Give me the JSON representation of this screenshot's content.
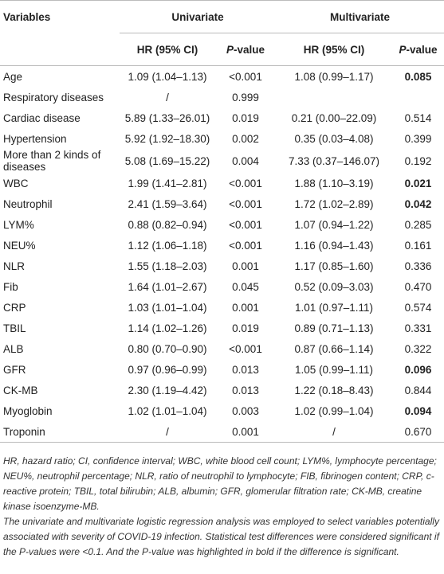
{
  "header": {
    "variables": "Variables",
    "univariate": "Univariate",
    "multivariate": "Multivariate",
    "hr": "HR (95% CI)",
    "p": "P-value"
  },
  "table": {
    "rows": [
      {
        "variable": "Age",
        "uni_hr": "1.09 (1.04–1.13)",
        "uni_p": "<0.001",
        "multi_hr": "1.08 (0.99–1.17)",
        "multi_p": "0.085",
        "significant": true
      },
      {
        "variable": "Respiratory diseases",
        "uni_hr": "/",
        "uni_p": "0.999",
        "multi_hr": "",
        "multi_p": "",
        "significant": false
      },
      {
        "variable": "Cardiac disease",
        "uni_hr": "5.89 (1.33–26.01)",
        "uni_p": "0.019",
        "multi_hr": "0.21 (0.00–22.09)",
        "multi_p": "0.514",
        "significant": false
      },
      {
        "variable": "Hypertension",
        "uni_hr": "5.92 (1.92–18.30)",
        "uni_p": "0.002",
        "multi_hr": "0.35 (0.03–4.08)",
        "multi_p": "0.399",
        "significant": false
      },
      {
        "variable": "More than 2 kinds of diseases",
        "uni_hr": "5.08 (1.69–15.22)",
        "uni_p": "0.004",
        "multi_hr": "7.33 (0.37–146.07)",
        "multi_p": "0.192",
        "significant": false
      },
      {
        "variable": "WBC",
        "uni_hr": "1.99 (1.41–2.81)",
        "uni_p": "<0.001",
        "multi_hr": "1.88 (1.10–3.19)",
        "multi_p": "0.021",
        "significant": true
      },
      {
        "variable": "Neutrophil",
        "uni_hr": "2.41 (1.59–3.64)",
        "uni_p": "<0.001",
        "multi_hr": "1.72 (1.02–2.89)",
        "multi_p": "0.042",
        "significant": true
      },
      {
        "variable": "LYM%",
        "uni_hr": "0.88 (0.82–0.94)",
        "uni_p": "<0.001",
        "multi_hr": "1.07 (0.94–1.22)",
        "multi_p": "0.285",
        "significant": false
      },
      {
        "variable": "NEU%",
        "uni_hr": "1.12 (1.06–1.18)",
        "uni_p": "<0.001",
        "multi_hr": "1.16 (0.94–1.43)",
        "multi_p": "0.161",
        "significant": false
      },
      {
        "variable": "NLR",
        "uni_hr": "1.55 (1.18–2.03)",
        "uni_p": "0.001",
        "multi_hr": "1.17 (0.85–1.60)",
        "multi_p": "0.336",
        "significant": false
      },
      {
        "variable": "Fib",
        "uni_hr": "1.64 (1.01–2.67)",
        "uni_p": "0.045",
        "multi_hr": "0.52 (0.09–3.03)",
        "multi_p": "0.470",
        "significant": false
      },
      {
        "variable": "CRP",
        "uni_hr": "1.03 (1.01–1.04)",
        "uni_p": "0.001",
        "multi_hr": "1.01 (0.97–1.11)",
        "multi_p": "0.574",
        "significant": false
      },
      {
        "variable": "TBIL",
        "uni_hr": "1.14 (1.02–1.26)",
        "uni_p": "0.019",
        "multi_hr": "0.89 (0.71–1.13)",
        "multi_p": "0.331",
        "significant": false
      },
      {
        "variable": "ALB",
        "uni_hr": "0.80 (0.70–0.90)",
        "uni_p": "<0.001",
        "multi_hr": "0.87 (0.66–1.14)",
        "multi_p": "0.322",
        "significant": false
      },
      {
        "variable": "GFR",
        "uni_hr": "0.97 (0.96–0.99)",
        "uni_p": "0.013",
        "multi_hr": "1.05 (0.99–1.11)",
        "multi_p": "0.096",
        "significant": true
      },
      {
        "variable": "CK-MB",
        "uni_hr": "2.30 (1.19–4.42)",
        "uni_p": "0.013",
        "multi_hr": "1.22 (0.18–8.43)",
        "multi_p": "0.844",
        "significant": false
      },
      {
        "variable": "Myoglobin",
        "uni_hr": "1.02 (1.01–1.04)",
        "uni_p": "0.003",
        "multi_hr": "1.02 (0.99–1.04)",
        "multi_p": "0.094",
        "significant": true
      },
      {
        "variable": "Troponin",
        "uni_hr": "/",
        "uni_p": "0.001",
        "multi_hr": "/",
        "multi_p": "0.670",
        "significant": false
      }
    ]
  },
  "footnotes": [
    "HR, hazard ratio; CI, confidence interval; WBC, white blood cell count; LYM%, lymphocyte percentage; NEU%, neutrophil percentage; NLR, ratio of neutrophil to lymphocyte; FIB, fibrinogen content; CRP, c-reactive protein; TBIL, total bilirubin; ALB, albumin; GFR, glomerular filtration rate; CK-MB, creatine kinase isoenzyme-MB.",
    "The univariate and multivariate logistic regression analysis was employed to select variables potentially associated with severity of COVID-19 infection. Statistical test differences were considered significant if the P-values were <0.1. And the P-value was highlighted in bold if the difference is significant."
  ]
}
